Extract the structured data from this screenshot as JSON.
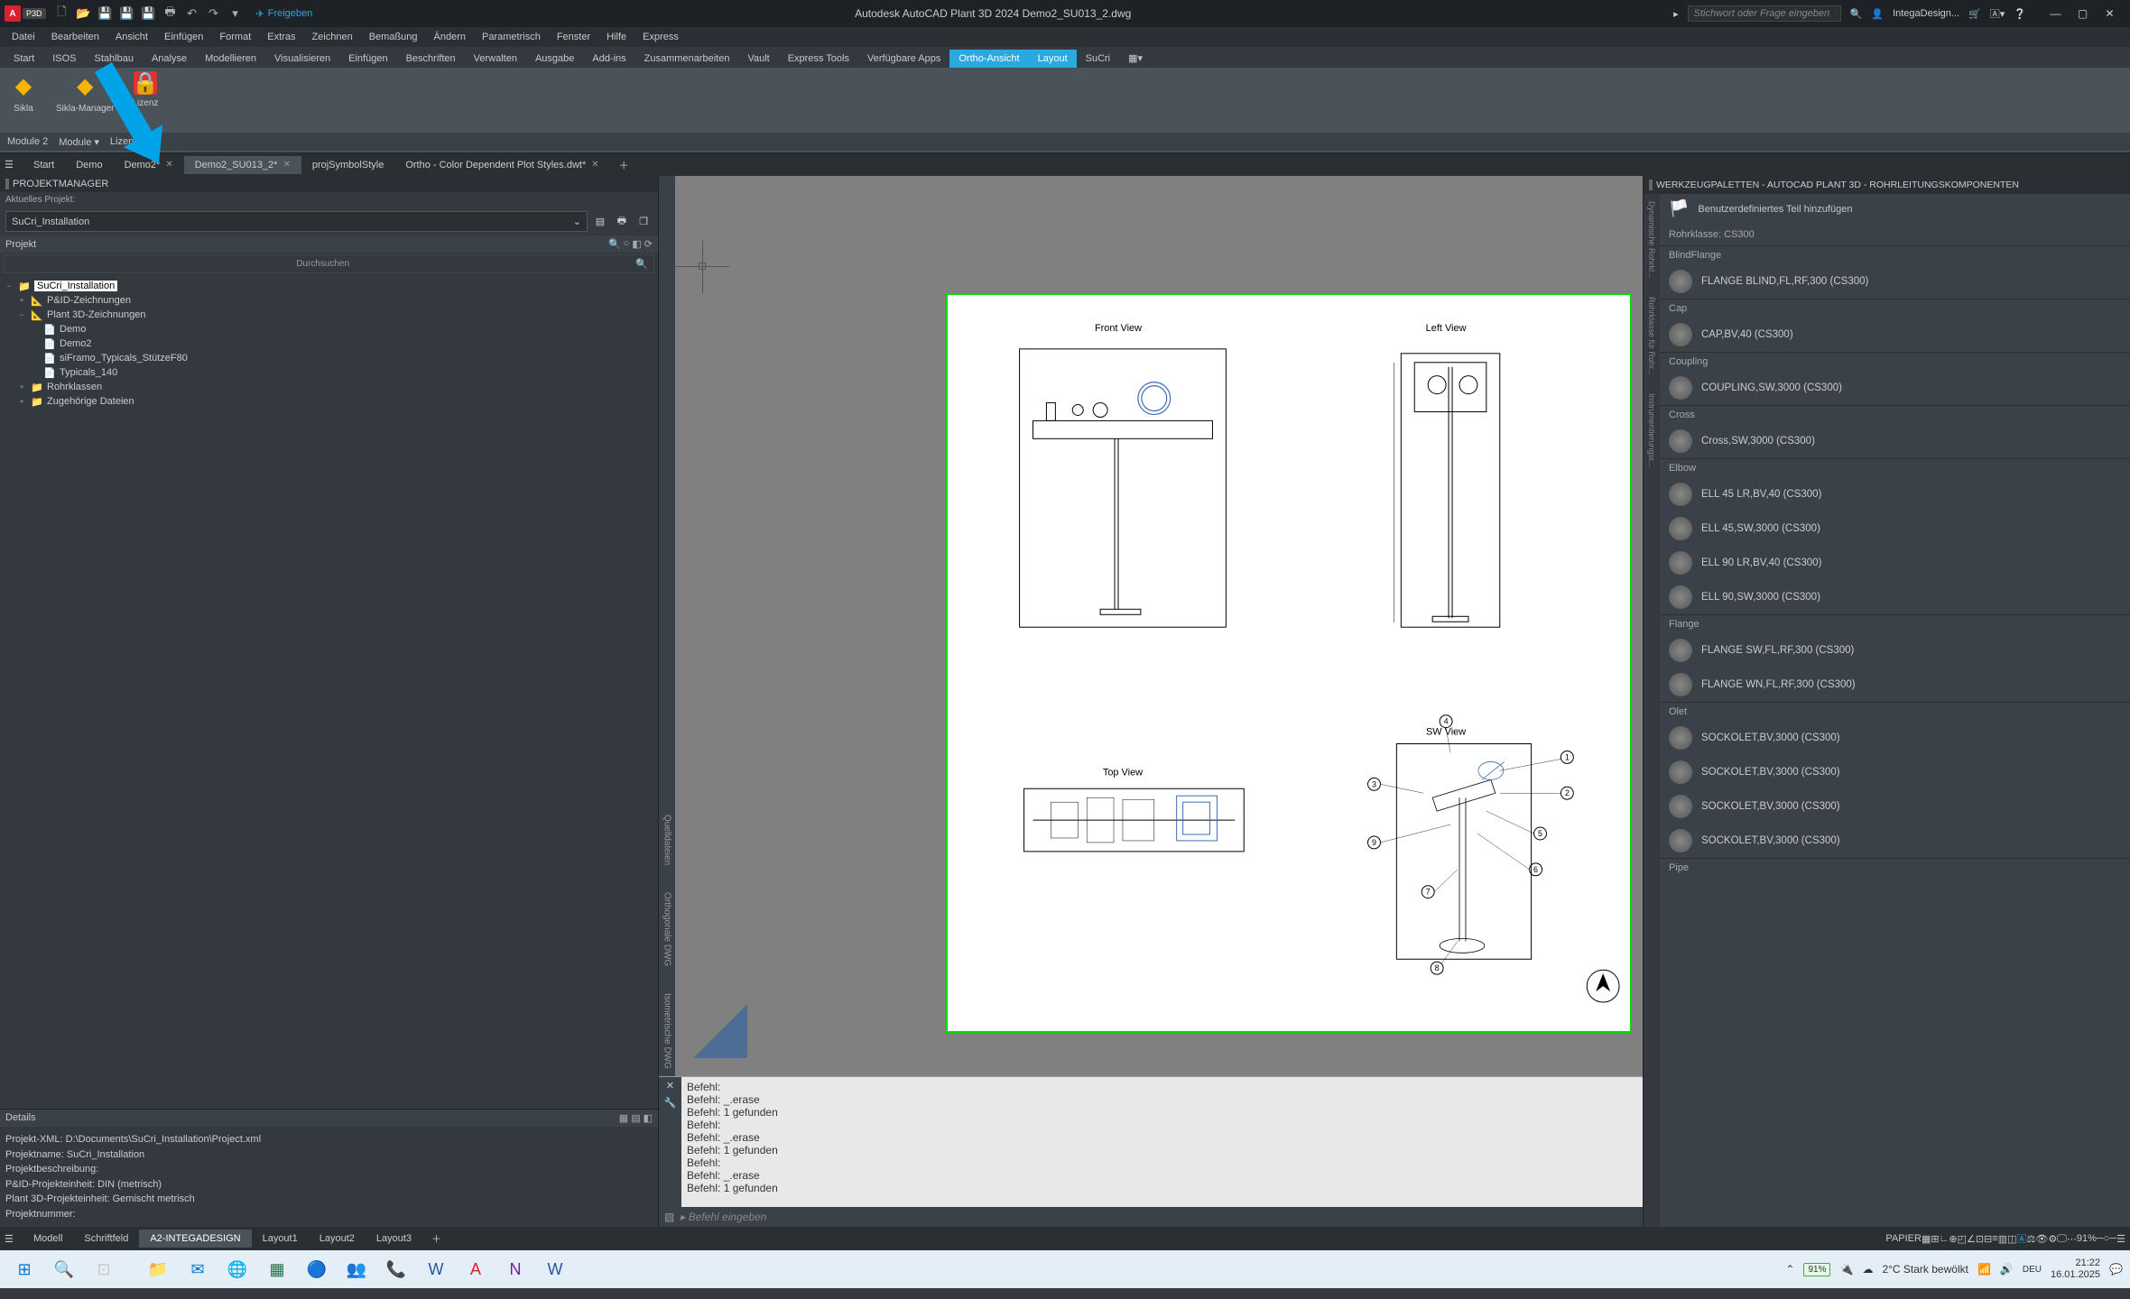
{
  "app": {
    "title": "Autodesk AutoCAD Plant 3D 2024   Demo2_SU013_2.dwg",
    "share": "Freigeben",
    "search_placeholder": "Stichwort oder Frage eingeben",
    "user": "IntegaDesign..."
  },
  "menus": [
    "Datei",
    "Bearbeiten",
    "Ansicht",
    "Einfügen",
    "Format",
    "Extras",
    "Zeichnen",
    "Bemaßung",
    "Ändern",
    "Parametrisch",
    "Fenster",
    "Hilfe",
    "Express"
  ],
  "ribbon_tabs": [
    "Start",
    "ISOS",
    "Stahlbau",
    "Analyse",
    "Modellieren",
    "Visualisieren",
    "Einfügen",
    "Beschriften",
    "Verwalten",
    "Ausgabe",
    "Add-ins",
    "Zusammenarbeiten",
    "Vault",
    "Express Tools",
    "Verfügbare Apps",
    "Ortho-Ansicht",
    "Layout",
    "SuCri"
  ],
  "ribbon_active": 15,
  "ribbon_panels": [
    {
      "label": "Sikla"
    },
    {
      "label": "Sikla-Manager"
    },
    {
      "label": "Lizenz"
    }
  ],
  "ribbon_footer": [
    "Module 2",
    "Module ▾",
    "Lizenz"
  ],
  "doc_tabs": [
    {
      "label": "Start"
    },
    {
      "label": "Demo"
    },
    {
      "label": "Demo2*"
    },
    {
      "label": "Demo2_SU013_2*",
      "active": true
    },
    {
      "label": "projSymbolStyle"
    },
    {
      "label": "Ortho - Color Dependent Plot Styles.dwt*"
    }
  ],
  "pm": {
    "title": "PROJEKTMANAGER",
    "current_label": "Aktuelles Projekt:",
    "current_project": "SuCri_Installation",
    "section": "Projekt",
    "search": "Durchsuchen",
    "tree": [
      {
        "ind": 0,
        "toggle": "−",
        "icon": "📁",
        "label": "SuCri_Installation",
        "selected": true
      },
      {
        "ind": 1,
        "toggle": "+",
        "icon": "📐",
        "label": "P&ID-Zeichnungen"
      },
      {
        "ind": 1,
        "toggle": "−",
        "icon": "📐",
        "label": "Plant 3D-Zeichnungen"
      },
      {
        "ind": 2,
        "toggle": "",
        "icon": "📄",
        "label": "Demo"
      },
      {
        "ind": 2,
        "toggle": "",
        "icon": "📄",
        "label": "Demo2"
      },
      {
        "ind": 2,
        "toggle": "",
        "icon": "📄",
        "label": "siFramo_Typicals_StützeF80"
      },
      {
        "ind": 2,
        "toggle": "",
        "icon": "📄",
        "label": "Typicals_140"
      },
      {
        "ind": 1,
        "toggle": "+",
        "icon": "📁",
        "label": "Rohrklassen"
      },
      {
        "ind": 1,
        "toggle": "+",
        "icon": "📁",
        "label": "Zugehörige Dateien"
      }
    ],
    "details_title": "Details",
    "details": [
      "Projekt-XML:  D:\\Documents\\SuCri_Installation\\Project.xml",
      "Projektname:  SuCri_Installation",
      "Projektbeschreibung:",
      "P&ID-Projekteinheit: DIN (metrisch)",
      "Plant 3D-Projekteinheit: Gemischt metrisch",
      "Projektnummer:"
    ]
  },
  "side_palettes": [
    "Quelldateien",
    "Orthogonale DWG",
    "Isometrische DWG"
  ],
  "drawing": {
    "views": {
      "front": "Front View",
      "left": "Left View",
      "top": "Top View",
      "sw": "SW View"
    }
  },
  "cmd_lines": "Befehl:\nBefehl: _.erase\nBefehl: 1 gefunden\nBefehl:\nBefehl: _.erase\nBefehl: 1 gefunden\nBefehl:\nBefehl: _.erase\nBefehl: 1 gefunden",
  "cmd_prompt": "▸ Befehl eingeben",
  "rp": {
    "title": "WERKZEUGPALETTEN - AUTOCAD PLANT 3D - ROHRLEITUNGSKOMPONENTEN",
    "add_custom": "Benutzerdefiniertes Teil hinzufügen",
    "class_label": "Rohrklasse: CS300",
    "strips": [
      "Dynamische Rohrkl...",
      "Rohrklasse für Rohr...",
      "Instrumentierungsr..."
    ],
    "groups": [
      {
        "cat": "BlindFlange",
        "items": [
          "FLANGE BLIND,FL,RF,300 (CS300)"
        ]
      },
      {
        "cat": "Cap",
        "items": [
          "CAP,BV,40 (CS300)"
        ]
      },
      {
        "cat": "Coupling",
        "items": [
          "COUPLING,SW,3000 (CS300)"
        ]
      },
      {
        "cat": "Cross",
        "items": [
          "Cross,SW,3000 (CS300)"
        ]
      },
      {
        "cat": "Elbow",
        "items": [
          "ELL 45 LR,BV,40 (CS300)",
          "ELL 45,SW,3000 (CS300)",
          "ELL 90 LR,BV,40 (CS300)",
          "ELL 90,SW,3000 (CS300)"
        ]
      },
      {
        "cat": "Flange",
        "items": [
          "FLANGE SW,FL,RF,300 (CS300)",
          "FLANGE WN,FL,RF,300 (CS300)"
        ]
      },
      {
        "cat": "Olet",
        "items": [
          "SOCKOLET,BV,3000 (CS300)",
          "SOCKOLET,BV,3000 (CS300)",
          "SOCKOLET,BV,3000 (CS300)",
          "SOCKOLET,BV,3000 (CS300)"
        ]
      },
      {
        "cat": "Pipe",
        "items": []
      }
    ]
  },
  "layout_tabs": [
    {
      "label": "Modell"
    },
    {
      "label": "Schriftfeld"
    },
    {
      "label": "A2-INTEGADESIGN",
      "active": true
    },
    {
      "label": "Layout1"
    },
    {
      "label": "Layout2"
    },
    {
      "label": "Layout3"
    }
  ],
  "status": {
    "paper": "PAPIER",
    "scale": "91%"
  },
  "taskbar": {
    "weather": "2°C  Stark bewölkt",
    "time": "21:22",
    "date": "16.01.2025",
    "battery": "91%"
  }
}
